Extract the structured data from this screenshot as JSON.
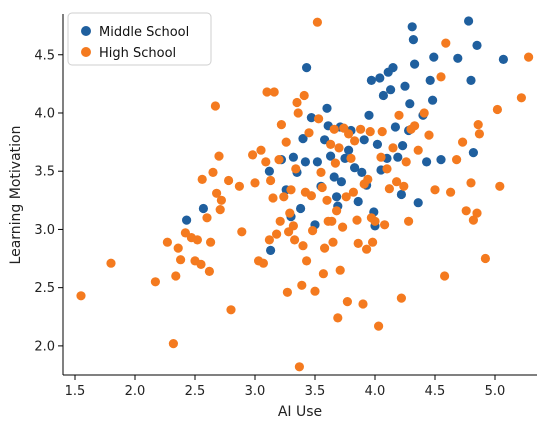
{
  "chart_data": {
    "type": "scatter",
    "title": "",
    "xlabel": "AI Use",
    "ylabel": "Learning Motivation",
    "xlim": [
      1.4,
      5.35
    ],
    "ylim": [
      1.75,
      4.85
    ],
    "xticks": [
      1.5,
      2.0,
      2.5,
      3.0,
      3.5,
      4.0,
      4.5,
      5.0
    ],
    "yticks": [
      2.0,
      2.5,
      3.0,
      3.5,
      4.0,
      4.5
    ],
    "xtick_labels": [
      "1.5",
      "2.0",
      "2.5",
      "3.0",
      "3.5",
      "4.0",
      "4.5",
      "5.0"
    ],
    "ytick_labels": [
      "2.0",
      "2.5",
      "3.0",
      "3.5",
      "4.0",
      "4.5"
    ],
    "grid": false,
    "legend_position": "top-left",
    "series": [
      {
        "name": "Middle School",
        "color": "#1f5f9e",
        "points": [
          [
            2.43,
            3.08
          ],
          [
            2.57,
            3.18
          ],
          [
            3.12,
            3.5
          ],
          [
            3.13,
            2.82
          ],
          [
            3.22,
            3.6
          ],
          [
            3.26,
            3.34
          ],
          [
            3.3,
            3.11
          ],
          [
            3.32,
            3.62
          ],
          [
            3.35,
            3.49
          ],
          [
            3.38,
            3.18
          ],
          [
            3.42,
            3.58
          ],
          [
            3.43,
            4.39
          ],
          [
            3.4,
            3.78
          ],
          [
            3.47,
            3.96
          ],
          [
            3.5,
            3.04
          ],
          [
            3.52,
            3.58
          ],
          [
            3.55,
            3.37
          ],
          [
            3.58,
            3.77
          ],
          [
            3.6,
            4.04
          ],
          [
            3.61,
            3.89
          ],
          [
            3.63,
            3.63
          ],
          [
            3.66,
            3.45
          ],
          [
            3.68,
            3.28
          ],
          [
            3.69,
            3.2
          ],
          [
            3.71,
            3.88
          ],
          [
            3.72,
            3.41
          ],
          [
            3.75,
            3.61
          ],
          [
            3.78,
            3.68
          ],
          [
            3.8,
            3.85
          ],
          [
            3.83,
            3.53
          ],
          [
            3.86,
            3.24
          ],
          [
            3.89,
            3.49
          ],
          [
            3.91,
            3.77
          ],
          [
            3.93,
            3.38
          ],
          [
            3.95,
            3.98
          ],
          [
            3.97,
            4.28
          ],
          [
            3.99,
            3.15
          ],
          [
            4.0,
            3.03
          ],
          [
            4.02,
            3.73
          ],
          [
            4.04,
            4.3
          ],
          [
            4.05,
            3.51
          ],
          [
            4.07,
            4.15
          ],
          [
            4.1,
            3.61
          ],
          [
            4.11,
            4.35
          ],
          [
            4.13,
            4.2
          ],
          [
            4.15,
            4.39
          ],
          [
            4.17,
            3.88
          ],
          [
            4.19,
            3.62
          ],
          [
            4.22,
            3.3
          ],
          [
            4.23,
            3.72
          ],
          [
            4.25,
            4.23
          ],
          [
            4.28,
            3.85
          ],
          [
            4.29,
            4.08
          ],
          [
            4.31,
            4.74
          ],
          [
            4.32,
            4.63
          ],
          [
            4.33,
            4.42
          ],
          [
            4.36,
            3.23
          ],
          [
            4.4,
            3.98
          ],
          [
            4.43,
            3.58
          ],
          [
            4.46,
            4.28
          ],
          [
            4.48,
            4.11
          ],
          [
            4.49,
            4.48
          ],
          [
            4.55,
            3.6
          ],
          [
            4.69,
            4.47
          ],
          [
            4.78,
            4.79
          ],
          [
            4.8,
            4.28
          ],
          [
            4.82,
            3.66
          ],
          [
            4.85,
            4.58
          ],
          [
            5.07,
            4.46
          ]
        ]
      },
      {
        "name": "High School",
        "color": "#f47a1f",
        "points": [
          [
            1.55,
            2.43
          ],
          [
            1.8,
            2.71
          ],
          [
            2.17,
            2.55
          ],
          [
            2.27,
            2.89
          ],
          [
            2.32,
            2.02
          ],
          [
            2.34,
            2.6
          ],
          [
            2.36,
            2.84
          ],
          [
            2.38,
            2.74
          ],
          [
            2.42,
            2.97
          ],
          [
            2.47,
            2.93
          ],
          [
            2.5,
            2.73
          ],
          [
            2.52,
            2.91
          ],
          [
            2.55,
            2.7
          ],
          [
            2.56,
            3.43
          ],
          [
            2.6,
            3.1
          ],
          [
            2.62,
            2.64
          ],
          [
            2.63,
            2.89
          ],
          [
            2.65,
            3.49
          ],
          [
            2.67,
            4.06
          ],
          [
            2.68,
            3.31
          ],
          [
            2.7,
            3.63
          ],
          [
            2.71,
            3.17
          ],
          [
            2.72,
            3.25
          ],
          [
            2.78,
            3.42
          ],
          [
            2.8,
            2.31
          ],
          [
            2.87,
            3.37
          ],
          [
            2.89,
            2.98
          ],
          [
            2.98,
            3.64
          ],
          [
            3.0,
            3.4
          ],
          [
            3.03,
            2.73
          ],
          [
            3.05,
            3.68
          ],
          [
            3.07,
            2.71
          ],
          [
            3.09,
            3.58
          ],
          [
            3.1,
            4.18
          ],
          [
            3.12,
            2.91
          ],
          [
            3.13,
            3.42
          ],
          [
            3.15,
            3.27
          ],
          [
            3.16,
            4.18
          ],
          [
            3.18,
            2.96
          ],
          [
            3.2,
            3.6
          ],
          [
            3.21,
            3.07
          ],
          [
            3.22,
            3.9
          ],
          [
            3.24,
            3.28
          ],
          [
            3.26,
            3.75
          ],
          [
            3.27,
            2.46
          ],
          [
            3.28,
            2.98
          ],
          [
            3.29,
            3.14
          ],
          [
            3.3,
            3.34
          ],
          [
            3.32,
            3.03
          ],
          [
            3.33,
            2.91
          ],
          [
            3.34,
            3.52
          ],
          [
            3.35,
            4.09
          ],
          [
            3.36,
            4.0
          ],
          [
            3.37,
            1.82
          ],
          [
            3.39,
            2.52
          ],
          [
            3.4,
            2.86
          ],
          [
            3.41,
            4.15
          ],
          [
            3.42,
            3.32
          ],
          [
            3.43,
            2.73
          ],
          [
            3.45,
            3.83
          ],
          [
            3.47,
            3.29
          ],
          [
            3.48,
            2.99
          ],
          [
            3.5,
            2.47
          ],
          [
            3.52,
            4.78
          ],
          [
            3.53,
            3.95
          ],
          [
            3.55,
            3.49
          ],
          [
            3.56,
            3.36
          ],
          [
            3.57,
            2.62
          ],
          [
            3.58,
            2.84
          ],
          [
            3.6,
            3.25
          ],
          [
            3.61,
            3.07
          ],
          [
            3.63,
            3.73
          ],
          [
            3.64,
            3.07
          ],
          [
            3.65,
            2.89
          ],
          [
            3.66,
            3.86
          ],
          [
            3.67,
            3.57
          ],
          [
            3.68,
            3.16
          ],
          [
            3.69,
            2.24
          ],
          [
            3.7,
            3.7
          ],
          [
            3.71,
            2.65
          ],
          [
            3.73,
            3.02
          ],
          [
            3.74,
            3.87
          ],
          [
            3.76,
            3.28
          ],
          [
            3.77,
            2.38
          ],
          [
            3.78,
            3.82
          ],
          [
            3.8,
            3.61
          ],
          [
            3.82,
            3.32
          ],
          [
            3.83,
            3.76
          ],
          [
            3.85,
            3.08
          ],
          [
            3.86,
            2.88
          ],
          [
            3.88,
            3.86
          ],
          [
            3.9,
            2.36
          ],
          [
            3.91,
            3.39
          ],
          [
            3.93,
            2.83
          ],
          [
            3.94,
            3.43
          ],
          [
            3.96,
            3.84
          ],
          [
            3.97,
            3.1
          ],
          [
            3.98,
            2.89
          ],
          [
            4.0,
            3.07
          ],
          [
            4.03,
            2.17
          ],
          [
            4.05,
            3.62
          ],
          [
            4.06,
            3.84
          ],
          [
            4.08,
            3.04
          ],
          [
            4.1,
            3.52
          ],
          [
            4.12,
            3.35
          ],
          [
            4.15,
            3.7
          ],
          [
            4.18,
            3.41
          ],
          [
            4.2,
            3.98
          ],
          [
            4.22,
            2.41
          ],
          [
            4.24,
            3.37
          ],
          [
            4.26,
            3.58
          ],
          [
            4.28,
            3.07
          ],
          [
            4.3,
            3.86
          ],
          [
            4.33,
            3.89
          ],
          [
            4.36,
            3.68
          ],
          [
            4.41,
            4.0
          ],
          [
            4.45,
            3.81
          ],
          [
            4.5,
            3.34
          ],
          [
            4.55,
            4.31
          ],
          [
            4.58,
            2.6
          ],
          [
            4.59,
            4.6
          ],
          [
            4.63,
            3.32
          ],
          [
            4.68,
            3.6
          ],
          [
            4.73,
            3.75
          ],
          [
            4.76,
            3.16
          ],
          [
            4.8,
            3.4
          ],
          [
            4.82,
            3.08
          ],
          [
            4.85,
            3.14
          ],
          [
            4.86,
            3.9
          ],
          [
            4.87,
            3.82
          ],
          [
            4.92,
            2.75
          ],
          [
            5.02,
            4.03
          ],
          [
            5.04,
            3.37
          ],
          [
            5.22,
            4.13
          ],
          [
            5.28,
            4.48
          ]
        ]
      }
    ]
  }
}
